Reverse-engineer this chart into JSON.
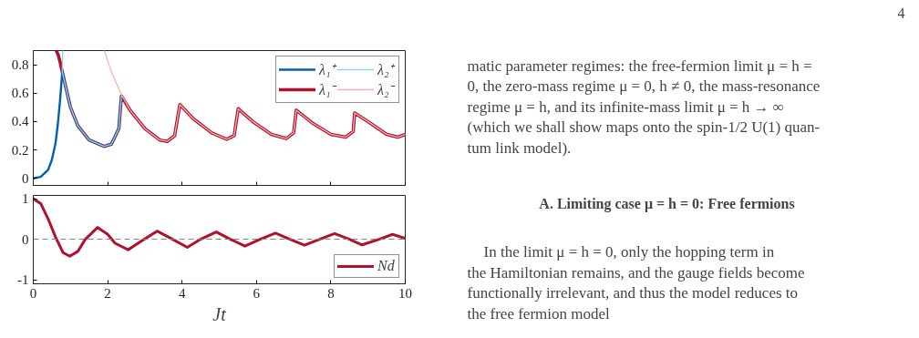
{
  "chart_data": [
    {
      "type": "line",
      "xlim": [
        0,
        10
      ],
      "xticks": [
        0,
        2,
        4,
        6,
        8,
        10
      ],
      "ylim": [
        -0.05,
        0.9
      ],
      "yticks": [
        0,
        0.2,
        0.4,
        0.6,
        0.8
      ],
      "tick_labels": "y",
      "legend": "top right",
      "grid": false,
      "series": [
        {
          "name": "λ₁⁻",
          "color": "#b0122c",
          "x": [
            0.62,
            0.67,
            0.72,
            0.78,
            1.0,
            1.2,
            1.5,
            1.9,
            2.1,
            2.3,
            2.37,
            2.6,
            3.0,
            3.4,
            3.6,
            3.8,
            3.94,
            4.3,
            4.8,
            5.2,
            5.4,
            5.51,
            5.9,
            6.4,
            6.8,
            7.0,
            7.07,
            7.5,
            8.0,
            8.4,
            8.6,
            8.64,
            9.0,
            9.5,
            9.8,
            10
          ],
          "values": [
            0.9,
            0.87,
            0.82,
            0.75,
            0.5,
            0.37,
            0.27,
            0.225,
            0.24,
            0.35,
            0.58,
            0.48,
            0.35,
            0.27,
            0.26,
            0.3,
            0.52,
            0.42,
            0.32,
            0.275,
            0.3,
            0.49,
            0.4,
            0.31,
            0.28,
            0.32,
            0.48,
            0.39,
            0.31,
            0.29,
            0.33,
            0.46,
            0.4,
            0.31,
            0.29,
            0.31
          ]
        },
        {
          "name": "λ₁⁺",
          "color": "#0060b0",
          "x": [
            0,
            0.2,
            0.4,
            0.5,
            0.6,
            0.66,
            0.72,
            0.78,
            1.0,
            1.2,
            1.5,
            1.9,
            2.1,
            2.3,
            2.37
          ],
          "values": [
            0,
            0.01,
            0.06,
            0.13,
            0.25,
            0.38,
            0.55,
            0.75,
            0.5,
            0.37,
            0.27,
            0.225,
            0.24,
            0.35,
            0.58
          ]
        },
        {
          "name": "λ₂⁺",
          "color": "#8fd3ef",
          "x": [
            0.79,
            0.78,
            1.0,
            1.2,
            1.5,
            1.9,
            2.1,
            2.3,
            2.37
          ],
          "values": [
            0.9,
            0.75,
            0.5,
            0.37,
            0.27,
            0.225,
            0.24,
            0.35,
            0.58
          ]
        },
        {
          "name": "λ₂⁻",
          "color": "#f7b3b3",
          "x": [
            1.91,
            2.1,
            2.3,
            2.37,
            2.6,
            3.0,
            3.4,
            3.6,
            3.8,
            3.94,
            4.3,
            4.8,
            5.2,
            5.4,
            5.51,
            5.9,
            6.4,
            6.8,
            7.0,
            7.07,
            7.5,
            8.0,
            8.4,
            8.6,
            8.64,
            9.0,
            9.5,
            9.8,
            10
          ],
          "values": [
            0.9,
            0.75,
            0.63,
            0.59,
            0.48,
            0.35,
            0.27,
            0.26,
            0.3,
            0.52,
            0.42,
            0.32,
            0.275,
            0.3,
            0.49,
            0.4,
            0.31,
            0.28,
            0.32,
            0.48,
            0.39,
            0.31,
            0.29,
            0.33,
            0.46,
            0.4,
            0.31,
            0.29,
            0.31
          ]
        }
      ]
    },
    {
      "type": "line",
      "xlabel": "Jt",
      "xlim": [
        0,
        10
      ],
      "xticks": [
        0,
        2,
        4,
        6,
        8,
        10
      ],
      "ylim": [
        -1.1,
        1.08
      ],
      "yticks": [
        {
          "value": -1,
          "label": "-1"
        },
        0,
        1
      ],
      "legend": "bottom right",
      "grid": false,
      "ref_lines": [
        {
          "axis": "y",
          "value": 0,
          "color": "#808080",
          "line_style": "dashed"
        }
      ],
      "series": [
        {
          "name": "Nd",
          "color": "#b0122c",
          "x": [
            0,
            0.2,
            0.4,
            0.6,
            0.8,
            0.98,
            1.2,
            1.4,
            1.73,
            2.0,
            2.2,
            2.55,
            2.9,
            3.33,
            3.7,
            4.14,
            4.5,
            4.92,
            5.3,
            5.69,
            6.1,
            6.51,
            6.9,
            7.29,
            7.7,
            8.1,
            8.5,
            8.84,
            9.3,
            9.66,
            10
          ],
          "values": [
            1,
            0.88,
            0.5,
            0.05,
            -0.33,
            -0.42,
            -0.3,
            0,
            0.29,
            0.12,
            -0.1,
            -0.26,
            -0.05,
            0.2,
            0.02,
            -0.2,
            0,
            0.18,
            0,
            -0.17,
            0,
            0.15,
            0,
            -0.15,
            0,
            0.14,
            0,
            -0.14,
            0,
            0.12,
            0.02
          ]
        }
      ]
    },
    {
      "type": "other",
      "annotations": [
        "4",
        "matic parameter regimes: the free-fermion limit μ = h =",
        "0, the zero-mass regime μ = 0, h ≠ 0, the mass-resonance",
        "regime μ = h, and its infinite-mass limit μ = h → ∞",
        "(which we shall show maps onto the spin-1/2 U(1) quan-",
        "tum link model).",
        "A.   Limiting case μ = h = 0: Free fermions",
        "In the limit μ = h = 0, only the hopping term in",
        "the Hamiltonian remains, and the gauge fields become",
        "functionally irrelevant, and thus the model reduces to",
        "the free fermion model"
      ]
    }
  ]
}
